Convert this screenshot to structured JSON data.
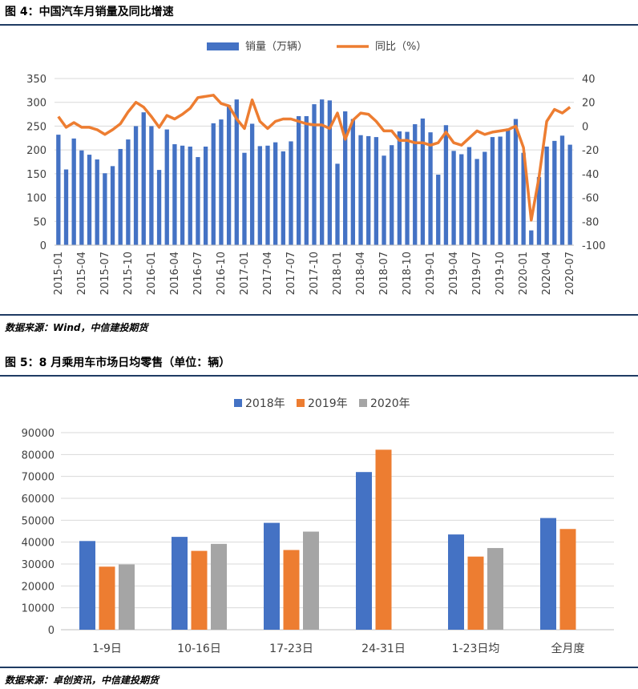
{
  "figure4": {
    "title": "图 4：中国汽车月销量及同比增速",
    "source": "数据来源：Wind，中信建投期货"
  },
  "figure5": {
    "title": "图 5：8 月乘用车市场日均零售（单位：辆）",
    "source": "数据来源：卓创资讯，中信建投期货"
  },
  "colors": {
    "blue": "#4472c4",
    "orange": "#ed7d31",
    "gray": "#a5a5a5",
    "rule": "#1f3b63"
  },
  "chart_data": [
    {
      "type": "bar+line",
      "legend": [
        "销量（万辆）",
        "同比（%）"
      ],
      "legend_placement": "top",
      "x": [
        "2015-01",
        "2015-02",
        "2015-03",
        "2015-04",
        "2015-05",
        "2015-06",
        "2015-07",
        "2015-08",
        "2015-09",
        "2015-10",
        "2015-11",
        "2015-12",
        "2016-01",
        "2016-02",
        "2016-03",
        "2016-04",
        "2016-05",
        "2016-06",
        "2016-07",
        "2016-08",
        "2016-09",
        "2016-10",
        "2016-11",
        "2016-12",
        "2017-01",
        "2017-02",
        "2017-03",
        "2017-04",
        "2017-05",
        "2017-06",
        "2017-07",
        "2017-08",
        "2017-09",
        "2017-10",
        "2017-11",
        "2017-12",
        "2018-01",
        "2018-02",
        "2018-03",
        "2018-04",
        "2018-05",
        "2018-06",
        "2018-07",
        "2018-08",
        "2018-09",
        "2018-10",
        "2018-11",
        "2018-12",
        "2019-01",
        "2019-02",
        "2019-03",
        "2019-04",
        "2019-05",
        "2019-06",
        "2019-07",
        "2019-08",
        "2019-09",
        "2019-10",
        "2019-11",
        "2019-12",
        "2020-01",
        "2020-02",
        "2020-03",
        "2020-04",
        "2020-05",
        "2020-06",
        "2020-07"
      ],
      "x_ticks": [
        "2015-01",
        "2015-04",
        "2015-07",
        "2015-10",
        "2016-01",
        "2016-04",
        "2016-07",
        "2016-10",
        "2017-01",
        "2017-04",
        "2017-07",
        "2017-10",
        "2018-01",
        "2018-04",
        "2018-07",
        "2018-10",
        "2019-01",
        "2019-04",
        "2019-07",
        "2019-10",
        "2020-01",
        "2020-04",
        "2020-07"
      ],
      "series": [
        {
          "name": "销量（万辆）",
          "type": "bar",
          "axis": "left",
          "values": [
            232,
            159,
            224,
            199,
            190,
            180,
            151,
            166,
            202,
            222,
            250,
            279,
            250,
            158,
            243,
            212,
            209,
            207,
            185,
            207,
            256,
            264,
            294,
            306,
            194,
            255,
            208,
            209,
            216,
            197,
            218,
            271,
            271,
            296,
            306,
            304,
            171,
            281,
            265,
            231,
            229,
            227,
            188,
            210,
            239,
            238,
            254,
            266,
            237,
            148,
            252,
            198,
            191,
            206,
            181,
            196,
            227,
            228,
            245,
            265,
            194,
            31,
            143,
            207,
            219,
            230,
            211
          ]
        },
        {
          "name": "同比（%）",
          "type": "line",
          "axis": "right",
          "values": [
            8,
            -1,
            3,
            -1,
            -1,
            -3,
            -7,
            -3,
            2,
            12,
            20,
            16,
            8,
            -1,
            9,
            6,
            10,
            15,
            24,
            25,
            26,
            19,
            17,
            6,
            -2,
            22,
            4,
            -2,
            4,
            6,
            6,
            4,
            2,
            1,
            1,
            -2,
            11,
            -11,
            5,
            11,
            10,
            4,
            -4,
            -4,
            -12,
            -12,
            -14,
            -14,
            -16,
            -14,
            -5,
            -14,
            -16,
            -10,
            -4,
            -7,
            -5,
            -4,
            -3,
            0,
            -18,
            -79,
            -43,
            4,
            14,
            11,
            16
          ]
        }
      ],
      "left_axis": {
        "min": 0,
        "max": 350,
        "step": 50
      },
      "right_axis": {
        "min": -100,
        "max": 40,
        "step": 20
      },
      "grid": true
    },
    {
      "type": "bar",
      "legend_placement": "top",
      "categories": [
        "1-9日",
        "10-16日",
        "17-23日",
        "24-31日",
        "1-23日均",
        "全月度"
      ],
      "series": [
        {
          "name": "2018年",
          "color": "#4472c4",
          "values": [
            40500,
            42400,
            48800,
            72000,
            43500,
            51000
          ]
        },
        {
          "name": "2019年",
          "color": "#ed7d31",
          "values": [
            28800,
            36000,
            36400,
            82200,
            33400,
            46000
          ]
        },
        {
          "name": "2020年",
          "color": "#a5a5a5",
          "values": [
            29800,
            39200,
            44800,
            null,
            37300,
            null
          ]
        }
      ],
      "ylim": [
        0,
        90000
      ],
      "y_step": 10000,
      "grid": true
    }
  ]
}
